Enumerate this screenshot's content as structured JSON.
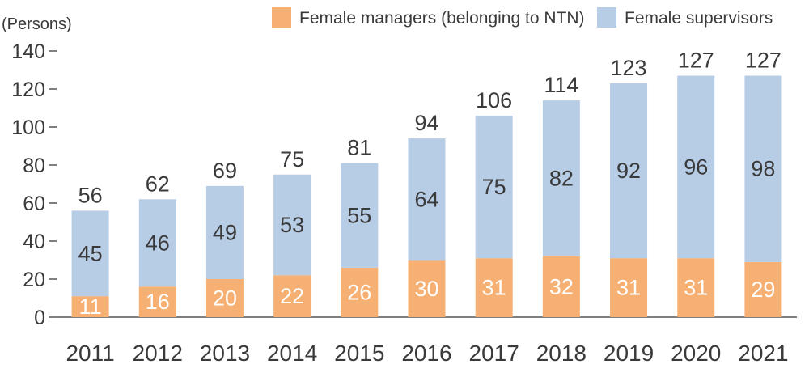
{
  "chart_data": {
    "type": "bar",
    "stacked": true,
    "unit_label": "(Persons)",
    "categories": [
      "2011",
      "2012",
      "2013",
      "2014",
      "2015",
      "2016",
      "2017",
      "2018",
      "2019",
      "2020",
      "2021"
    ],
    "series": [
      {
        "name": "Female managers (belonging to NTN)",
        "color": "#f6b073",
        "label_color": "#ffffff",
        "values": [
          11,
          16,
          20,
          22,
          26,
          30,
          31,
          32,
          31,
          31,
          29
        ]
      },
      {
        "name": "Female supervisors",
        "color": "#b7cce5",
        "label_color": "#3a3a3a",
        "values": [
          45,
          46,
          49,
          53,
          55,
          64,
          75,
          82,
          92,
          96,
          98
        ]
      }
    ],
    "totals": [
      56,
      62,
      69,
      75,
      81,
      94,
      106,
      114,
      123,
      127,
      127
    ],
    "ylim": [
      0,
      140
    ],
    "yticks": [
      0,
      20,
      40,
      60,
      80,
      100,
      120,
      140
    ],
    "grid": false,
    "legend_position": "top-right"
  }
}
